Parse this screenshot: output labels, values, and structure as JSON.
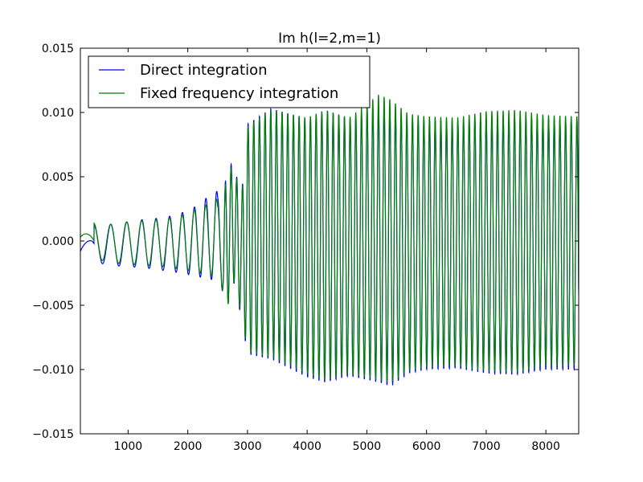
{
  "chart_data": {
    "type": "line",
    "title": "Im h(l=2,m=1)",
    "xlabel": "",
    "ylabel": "",
    "xlim": [
      200,
      8550
    ],
    "ylim": [
      -0.015,
      0.015
    ],
    "x_ticks": [
      1000,
      2000,
      3000,
      4000,
      5000,
      6000,
      7000,
      8000
    ],
    "x_tick_labels": [
      "1000",
      "2000",
      "3000",
      "4000",
      "5000",
      "6000",
      "7000",
      "8000"
    ],
    "y_ticks": [
      -0.015,
      -0.01,
      -0.005,
      0.0,
      0.005,
      0.01,
      0.015
    ],
    "y_tick_labels": [
      "−0.015",
      "−0.010",
      "−0.005",
      "0.000",
      "0.005",
      "0.010",
      "0.015"
    ],
    "grid": false,
    "legend_position": "top-left",
    "series": [
      {
        "name": "Direct integration",
        "color": "#0000ff",
        "envelope": {
          "x": [
            200,
            400,
            700,
            1000,
            1300,
            1600,
            1900,
            2100,
            2300,
            2500,
            2560,
            2620,
            2750,
            2900,
            3000,
            3400,
            4000,
            4300,
            4700,
            5200,
            5400,
            5700,
            6000,
            6500,
            7000,
            7500,
            8000,
            8500
          ],
          "upper": [
            -0.0008,
            0.0012,
            0.0013,
            0.0015,
            0.0017,
            0.0018,
            0.0022,
            0.0026,
            0.0033,
            0.0039,
            0.0079,
            0.0045,
            0.0063,
            0.0035,
            0.0091,
            0.0103,
            0.0095,
            0.0102,
            0.0095,
            0.0104,
            0.0102,
            0.0095,
            0.0094,
            0.0093,
            0.0095,
            0.0096,
            0.0095,
            0.0094
          ],
          "lower": [
            -0.0008,
            -0.0016,
            -0.0019,
            -0.002,
            -0.0021,
            -0.0023,
            -0.0025,
            -0.0027,
            -0.0029,
            -0.0031,
            -0.003,
            -0.0064,
            -0.0028,
            -0.006,
            -0.0088,
            -0.0092,
            -0.0106,
            -0.011,
            -0.0105,
            -0.011,
            -0.0113,
            -0.0103,
            -0.01,
            -0.0099,
            -0.0103,
            -0.0104,
            -0.01,
            -0.01
          ]
        }
      },
      {
        "name": "Fixed frequency integration",
        "color": "#008000",
        "envelope": {
          "x": [
            200,
            400,
            700,
            1000,
            1300,
            1600,
            1900,
            2100,
            2300,
            2500,
            2560,
            2620,
            2750,
            2900,
            3000,
            3400,
            4000,
            4300,
            4700,
            5200,
            5400,
            5700,
            6000,
            6500,
            7000,
            7500,
            8000,
            8500
          ],
          "upper": [
            0.0003,
            0.0014,
            0.0013,
            0.0015,
            0.0016,
            0.0017,
            0.002,
            0.0024,
            0.0028,
            0.0033,
            0.0077,
            0.0043,
            0.006,
            0.0034,
            0.0089,
            0.0102,
            0.0096,
            0.0102,
            0.0096,
            0.0114,
            0.011,
            0.0099,
            0.0097,
            0.0096,
            0.0101,
            0.0102,
            0.0098,
            0.0097
          ],
          "lower": [
            0.0003,
            -0.0013,
            -0.0017,
            -0.0018,
            -0.0019,
            -0.002,
            -0.0022,
            -0.0024,
            -0.0026,
            -0.0028,
            -0.003,
            -0.0066,
            -0.0027,
            -0.0058,
            -0.0086,
            -0.009,
            -0.0103,
            -0.0108,
            -0.0103,
            -0.0108,
            -0.011,
            -0.0101,
            -0.0098,
            -0.0097,
            -0.0101,
            -0.0102,
            -0.0097,
            -0.0097
          ]
        }
      }
    ]
  }
}
